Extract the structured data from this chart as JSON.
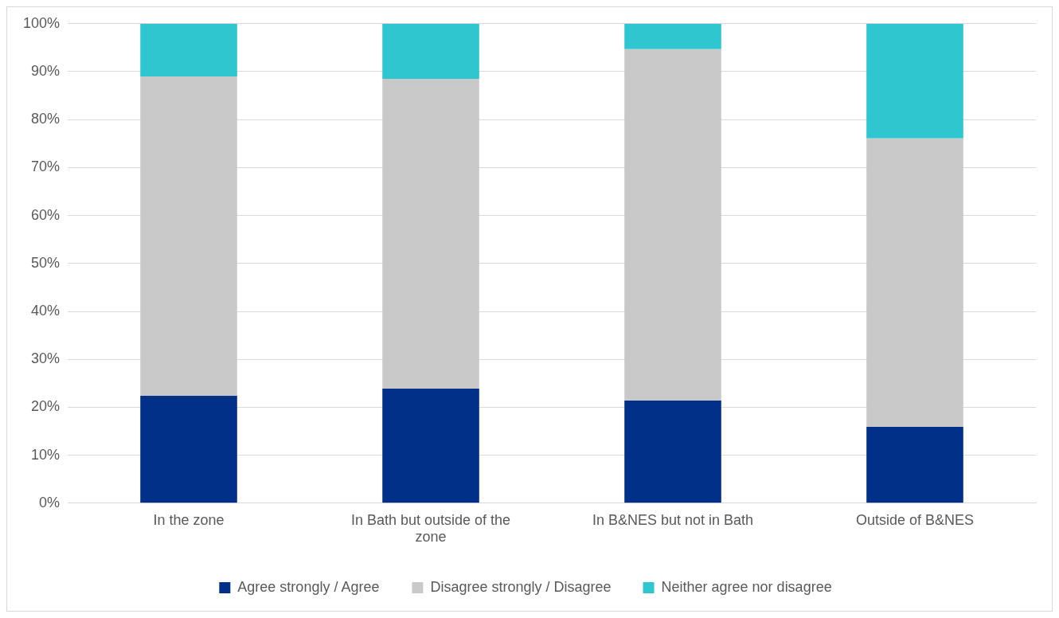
{
  "chart_data": {
    "type": "bar",
    "stacked": true,
    "categories": [
      "In the zone",
      "In Bath but outside of the zone",
      "In B&NES but not in Bath",
      "Outside of B&NES"
    ],
    "series": [
      {
        "name": "Agree strongly / Agree",
        "color": "#003087",
        "values": [
          22.4,
          23.9,
          21.4,
          15.9
        ]
      },
      {
        "name": "Disagree strongly / Disagree",
        "color": "#c9c9c9",
        "values": [
          66.6,
          64.6,
          73.3,
          60.2
        ]
      },
      {
        "name": "Neither agree nor disagree",
        "color": "#2ec7d0",
        "values": [
          11.0,
          11.5,
          5.3,
          23.9
        ]
      }
    ],
    "ylim": [
      0,
      100
    ],
    "yticks": [
      {
        "value": 0,
        "label": "0%"
      },
      {
        "value": 10,
        "label": "10%"
      },
      {
        "value": 20,
        "label": "20%"
      },
      {
        "value": 30,
        "label": "30%"
      },
      {
        "value": 40,
        "label": "40%"
      },
      {
        "value": 50,
        "label": "50%"
      },
      {
        "value": 60,
        "label": "60%"
      },
      {
        "value": 70,
        "label": "70%"
      },
      {
        "value": 80,
        "label": "80%"
      },
      {
        "value": 90,
        "label": "90%"
      },
      {
        "value": 100,
        "label": "100%"
      }
    ],
    "grid": "y",
    "legend": "bottom"
  }
}
